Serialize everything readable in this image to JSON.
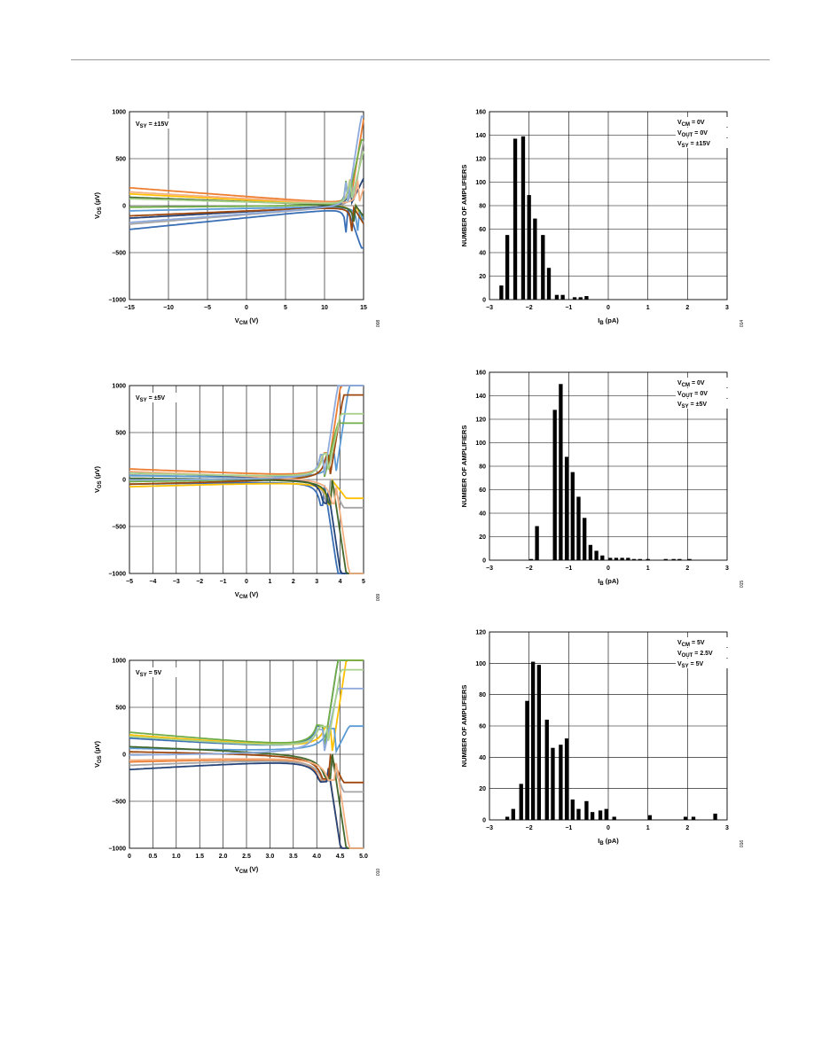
{
  "chart_data": [
    {
      "type": "line",
      "xlabel": "V_CM (V)",
      "ylabel": "V_OS (µV)",
      "annotation": [
        "V_SY = ±15V"
      ],
      "xticks": [
        "−15",
        "−10",
        "−5",
        "0",
        "5",
        "10",
        "15"
      ],
      "yticks": [
        "1000",
        "500",
        "0",
        "−500",
        "−1000"
      ],
      "xlim": [
        -15,
        15
      ],
      "ylim": [
        -1000,
        1000
      ],
      "grid": true,
      "fig_id": "008",
      "colors": [
        "#3a6fb5",
        "#ed7d31",
        "#a5a5a5",
        "#ffc000",
        "#5b9bd5",
        "#70ad47",
        "#264478",
        "#9e480e",
        "#43682b",
        "#f4b183",
        "#8faadc",
        "#a9d18e"
      ],
      "series_y0": [
        -280,
        210,
        -220,
        140,
        -60,
        -20,
        -150,
        -120,
        100,
        160,
        -200,
        80
      ],
      "series_yend": [
        -450,
        950,
        900,
        -300,
        -500,
        700,
        300,
        -250,
        -200,
        500,
        950,
        600
      ]
    },
    {
      "type": "bar",
      "xlabel": "I_B (pA)",
      "ylabel": "NUMBER OF AMPLIFIERS",
      "annotation": [
        "V_CM = 0V",
        "V_OUT = 0V",
        "V_SY = ±15V"
      ],
      "xticks": [
        "−3",
        "−2",
        "−1",
        "0",
        "1",
        "2",
        "3"
      ],
      "yticks": [
        "160",
        "140",
        "120",
        "100",
        "80",
        "60",
        "40",
        "20",
        "0"
      ],
      "xlim": [
        -3,
        3
      ],
      "ylim": [
        0,
        160
      ],
      "grid": true,
      "fig_id": "014",
      "x": [
        -2.7,
        -2.55,
        -2.35,
        -2.15,
        -2.0,
        -1.85,
        -1.65,
        -1.5,
        -1.3,
        -1.15,
        -0.85,
        -0.7,
        -0.55
      ],
      "values": [
        12,
        55,
        137,
        139,
        89,
        69,
        55,
        27,
        4,
        4,
        2,
        2,
        3
      ]
    },
    {
      "type": "line",
      "xlabel": "V_CM (V)",
      "ylabel": "V_OS (µV)",
      "annotation": [
        "V_SY = ±5V"
      ],
      "xticks": [
        "−5",
        "−4",
        "−3",
        "−2",
        "−1",
        "0",
        "1",
        "2",
        "3",
        "4",
        "5"
      ],
      "yticks": [
        "1000",
        "500",
        "0",
        "−500",
        "−1000"
      ],
      "xlim": [
        -5,
        5
      ],
      "ylim": [
        -1000,
        1000
      ],
      "grid": true,
      "fig_id": "009",
      "colors": [
        "#3a6fb5",
        "#ed7d31",
        "#a5a5a5",
        "#ffc000",
        "#5b9bd5",
        "#70ad47",
        "#264478",
        "#9e480e",
        "#43682b",
        "#f4b183",
        "#8faadc",
        "#a9d18e"
      ],
      "series_y0": [
        -50,
        120,
        60,
        -80,
        40,
        -30,
        90,
        -60,
        20,
        100,
        -10,
        70
      ],
      "series_yend": [
        -1000,
        1000,
        -300,
        -200,
        1000,
        600,
        -1000,
        900,
        -1000,
        -1000,
        1000,
        700
      ]
    },
    {
      "type": "bar",
      "xlabel": "I_B (pA)",
      "ylabel": "NUMBER OF AMPLIFIERS",
      "annotation": [
        "V_CM = 0V",
        "V_OUT = 0V",
        "V_SY = ±5V"
      ],
      "xticks": [
        "−3",
        "−2",
        "−1",
        "0",
        "1",
        "2",
        "3"
      ],
      "yticks": [
        "160",
        "140",
        "120",
        "100",
        "80",
        "60",
        "40",
        "20",
        "0"
      ],
      "xlim": [
        -3,
        3
      ],
      "ylim": [
        0,
        160
      ],
      "grid": true,
      "fig_id": "015",
      "x": [
        -1.95,
        -1.8,
        -1.35,
        -1.2,
        -1.05,
        -0.9,
        -0.75,
        -0.6,
        -0.45,
        -0.3,
        -0.15,
        0.05,
        0.2,
        0.35,
        0.5,
        0.65,
        0.8,
        1.0,
        1.45,
        1.65,
        1.8,
        2.05
      ],
      "values": [
        1,
        29,
        128,
        150,
        88,
        75,
        54,
        36,
        13,
        8,
        4,
        2,
        2,
        2,
        2,
        1,
        1,
        1,
        1,
        1,
        1,
        1
      ]
    },
    {
      "type": "line",
      "xlabel": "V_CM (V)",
      "ylabel": "V_OS (µV)",
      "annotation": [
        "V_SY = 5V"
      ],
      "xticks": [
        "0",
        "0.5",
        "1.0",
        "1.5",
        "2.0",
        "2.5",
        "3.0",
        "3.5",
        "4.0",
        "4.5",
        "5.0"
      ],
      "yticks": [
        "1000",
        "500",
        "0",
        "−500",
        "−1000"
      ],
      "xlim": [
        0,
        5
      ],
      "ylim": [
        -1000,
        1000
      ],
      "grid": true,
      "fig_id": "010",
      "colors": [
        "#3a6fb5",
        "#ed7d31",
        "#a5a5a5",
        "#ffc000",
        "#5b9bd5",
        "#70ad47",
        "#264478",
        "#9e480e",
        "#43682b",
        "#f4b183",
        "#8faadc",
        "#a9d18e"
      ],
      "series_y0": [
        180,
        -80,
        -120,
        220,
        60,
        250,
        -170,
        40,
        100,
        -60,
        -20,
        200
      ],
      "series_yend": [
        1000,
        -1000,
        -400,
        1000,
        300,
        1000,
        -1000,
        -300,
        -1000,
        -1000,
        700,
        900
      ]
    },
    {
      "type": "bar",
      "xlabel": "I_B (pA)",
      "ylabel": "NUMBER OF AMPLIFIERS",
      "annotation": [
        "V_CM = 5V",
        "V_OUT = 2.5V",
        "V_SY = 5V"
      ],
      "xticks": [
        "−3",
        "−2",
        "−1",
        "0",
        "1",
        "2",
        "3"
      ],
      "yticks": [
        "120",
        "100",
        "80",
        "60",
        "40",
        "20",
        "0"
      ],
      "xlim": [
        -3,
        3
      ],
      "ylim": [
        0,
        120
      ],
      "grid": true,
      "fig_id": "016",
      "x": [
        -2.55,
        -2.4,
        -2.2,
        -2.05,
        -1.9,
        -1.75,
        -1.55,
        -1.4,
        -1.2,
        -1.05,
        -0.9,
        -0.75,
        -0.55,
        -0.4,
        -0.2,
        -0.05,
        0.15,
        0.3,
        1.05,
        1.95,
        2.15,
        2.7
      ],
      "values": [
        2,
        7,
        23,
        76,
        101,
        99,
        64,
        46,
        48,
        52,
        13,
        7,
        12,
        5,
        6,
        7,
        2,
        0,
        3,
        2,
        2,
        4
      ]
    }
  ]
}
